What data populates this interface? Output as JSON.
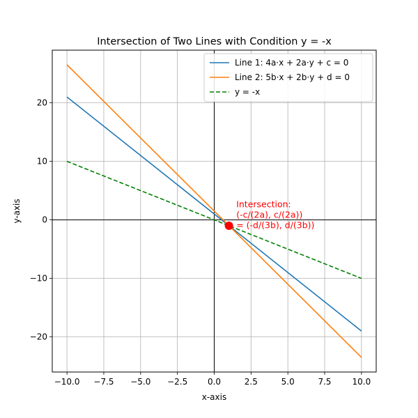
{
  "chart_data": {
    "type": "line",
    "title": "Intersection of Two Lines with Condition y = -x",
    "xlabel": "x-axis",
    "ylabel": "y-axis",
    "xlim": [
      -11,
      11
    ],
    "ylim": [
      -26,
      29
    ],
    "xticks": [
      -10,
      -7.5,
      -5,
      -2.5,
      0,
      2.5,
      5,
      7.5,
      10
    ],
    "xtick_labels": [
      "−10.0",
      "−7.5",
      "−5.0",
      "−2.5",
      "0.0",
      "2.5",
      "5.0",
      "7.5",
      "10.0"
    ],
    "yticks": [
      -20,
      -10,
      0,
      10,
      20
    ],
    "ytick_labels": [
      "−20",
      "−10",
      "0",
      "10",
      "20"
    ],
    "grid": true,
    "legend_position": "top-right",
    "series": [
      {
        "name": "Line 1: 4a·x + 2a·y + c = 0",
        "color": "#1f77b4",
        "style": "solid",
        "x": [
          -10,
          10
        ],
        "y": [
          21,
          -19
        ]
      },
      {
        "name": "Line 2: 5b·x + 2b·y + d = 0",
        "color": "#ff7f0e",
        "style": "solid",
        "x": [
          -10,
          10
        ],
        "y": [
          26.5,
          -23.5
        ]
      },
      {
        "name": "y = -x",
        "color": "#008000",
        "style": "dashed",
        "x": [
          -10,
          10
        ],
        "y": [
          10,
          -10
        ]
      }
    ],
    "intersection_point": {
      "x": 1,
      "y": -1,
      "color": "#ff0000"
    },
    "annotation": {
      "lines": [
        "Intersection:",
        "(-c/(2a), c/(2a))",
        "= (-d/(3b), d/(3b))"
      ],
      "color": "#ff0000",
      "anchor_x": 1.5,
      "anchor_y": -1
    }
  }
}
